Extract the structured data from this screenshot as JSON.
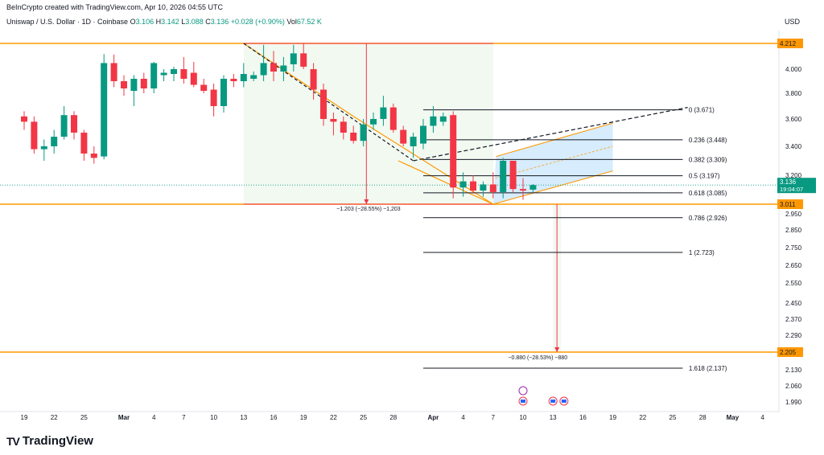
{
  "header": {
    "credit": "BeInCrypto created with TradingView.com, Apr 10, 2026 04:55 UTC",
    "symbol": "Uniswap / U.S. Dollar · 1D · Coinbase",
    "o_label": "O",
    "o": "3.106",
    "h_label": "H",
    "h": "3.142",
    "l_label": "L",
    "l": "3.088",
    "c_label": "C",
    "c": "3.136",
    "change": "+0.028 (+0.90%)",
    "vol_label": "Vol",
    "vol": "67.52 K",
    "currency": "USD"
  },
  "brand": {
    "name": "TradingView",
    "logo": "TV"
  },
  "chart_data": {
    "type": "candlestick",
    "x_ticks": [
      {
        "i": 0,
        "label": "19"
      },
      {
        "i": 3,
        "label": "22"
      },
      {
        "i": 6,
        "label": "25"
      },
      {
        "i": 10,
        "label": "Mar"
      },
      {
        "i": 13,
        "label": "4"
      },
      {
        "i": 16,
        "label": "7"
      },
      {
        "i": 19,
        "label": "10"
      },
      {
        "i": 22,
        "label": "13"
      },
      {
        "i": 25,
        "label": "16"
      },
      {
        "i": 28,
        "label": "19"
      },
      {
        "i": 31,
        "label": "22"
      },
      {
        "i": 34,
        "label": "25"
      },
      {
        "i": 37,
        "label": "28"
      },
      {
        "i": 41,
        "label": "Apr"
      },
      {
        "i": 44,
        "label": "4"
      },
      {
        "i": 47,
        "label": "7"
      },
      {
        "i": 50,
        "label": "10"
      },
      {
        "i": 53,
        "label": "13"
      },
      {
        "i": 56,
        "label": "16"
      },
      {
        "i": 59,
        "label": "19"
      },
      {
        "i": 62,
        "label": "22"
      },
      {
        "i": 65,
        "label": "25"
      },
      {
        "i": 68,
        "label": "28"
      },
      {
        "i": 71,
        "label": "May"
      },
      {
        "i": 74,
        "label": "4"
      }
    ],
    "y_ticks": [
      "4.000",
      "3.800",
      "3.600",
      "3.400",
      "3.200",
      "2.950",
      "2.850",
      "2.750",
      "2.650",
      "2.550",
      "2.450",
      "2.370",
      "2.290",
      "2.130",
      "2.060",
      "1.990"
    ],
    "y_range": [
      1.96,
      4.36
    ],
    "candles": [
      [
        3.62,
        3.66,
        3.52,
        3.58
      ],
      [
        3.58,
        3.62,
        3.35,
        3.38
      ],
      [
        3.38,
        3.45,
        3.3,
        3.4
      ],
      [
        3.4,
        3.52,
        3.35,
        3.47
      ],
      [
        3.47,
        3.7,
        3.45,
        3.63
      ],
      [
        3.63,
        3.66,
        3.45,
        3.5
      ],
      [
        3.5,
        3.52,
        3.3,
        3.35
      ],
      [
        3.35,
        3.4,
        3.28,
        3.32
      ],
      [
        3.33,
        4.3,
        3.31,
        4.05
      ],
      [
        4.05,
        4.12,
        3.85,
        3.9
      ],
      [
        3.9,
        3.95,
        3.78,
        3.84
      ],
      [
        3.82,
        3.95,
        3.7,
        3.92
      ],
      [
        3.92,
        3.97,
        3.8,
        3.84
      ],
      [
        3.84,
        4.06,
        3.8,
        4.05
      ],
      [
        3.95,
        4.0,
        3.9,
        3.97
      ],
      [
        3.96,
        4.02,
        3.9,
        4.0
      ],
      [
        4.0,
        4.1,
        3.88,
        3.92
      ],
      [
        3.97,
        4.06,
        3.85,
        3.87
      ],
      [
        3.87,
        3.92,
        3.8,
        3.82
      ],
      [
        3.83,
        3.88,
        3.62,
        3.7
      ],
      [
        3.7,
        3.95,
        3.65,
        3.92
      ],
      [
        3.92,
        3.96,
        3.85,
        3.9
      ],
      [
        3.9,
        4.05,
        3.85,
        3.96
      ],
      [
        3.92,
        3.98,
        3.9,
        3.95
      ],
      [
        3.95,
        4.2,
        3.9,
        4.05
      ],
      [
        4.05,
        4.15,
        3.9,
        3.98
      ],
      [
        3.98,
        4.1,
        3.9,
        4.03
      ],
      [
        4.04,
        4.2,
        3.98,
        4.13
      ],
      [
        4.13,
        4.21,
        4.0,
        4.02
      ],
      [
        4.0,
        4.05,
        3.75,
        3.83
      ],
      [
        3.83,
        3.88,
        3.55,
        3.6
      ],
      [
        3.6,
        3.65,
        3.48,
        3.58
      ],
      [
        3.58,
        3.62,
        3.45,
        3.5
      ],
      [
        3.5,
        3.55,
        3.42,
        3.44
      ],
      [
        3.44,
        3.6,
        3.4,
        3.56
      ],
      [
        3.56,
        3.65,
        3.52,
        3.6
      ],
      [
        3.6,
        3.78,
        3.55,
        3.69
      ],
      [
        3.69,
        3.72,
        3.5,
        3.52
      ],
      [
        3.52,
        3.55,
        3.4,
        3.42
      ],
      [
        3.4,
        3.5,
        3.32,
        3.47
      ],
      [
        3.42,
        3.6,
        3.38,
        3.55
      ],
      [
        3.55,
        3.7,
        3.5,
        3.62
      ],
      [
        3.58,
        3.65,
        3.55,
        3.62
      ],
      [
        3.63,
        3.66,
        3.05,
        3.12
      ],
      [
        3.12,
        3.22,
        3.06,
        3.16
      ],
      [
        3.16,
        3.2,
        3.08,
        3.1
      ],
      [
        3.1,
        3.16,
        3.06,
        3.14
      ],
      [
        3.14,
        3.22,
        3.05,
        3.09
      ],
      [
        3.09,
        3.32,
        3.05,
        3.3
      ],
      [
        3.3,
        3.3,
        3.09,
        3.11
      ],
      [
        3.11,
        3.18,
        3.04,
        3.1
      ],
      [
        3.106,
        3.142,
        3.088,
        3.136
      ]
    ],
    "horizontal_levels": [
      {
        "price": 4.212,
        "label": "4.212",
        "color": "#ff9800"
      },
      {
        "price": 3.011,
        "label": "3.011",
        "color": "#ff9800"
      },
      {
        "price": 2.205,
        "label": "2.205",
        "color": "#ff9800"
      }
    ],
    "current_price": {
      "price": 3.136,
      "label": "3.136",
      "countdown": "19:04:07",
      "color": "#089981"
    },
    "fib_levels": [
      {
        "price": 3.671,
        "label": "0 (3.671)"
      },
      {
        "price": 3.448,
        "label": "0.236 (3.448)"
      },
      {
        "price": 3.309,
        "label": "0.382 (3.309)"
      },
      {
        "price": 3.197,
        "label": "0.5 (3.197)"
      },
      {
        "price": 3.085,
        "label": "0.618 (3.085)"
      },
      {
        "price": 2.926,
        "label": "0.786 (2.926)"
      },
      {
        "price": 2.723,
        "label": "1 (2.723)"
      },
      {
        "price": 2.137,
        "label": "1.618 (2.137)"
      }
    ],
    "measure_labels": {
      "first": "−1.203 (−28.55%) −1,203",
      "second": "−0.880 (−28.53%) −880"
    },
    "axis_tag": "USD"
  }
}
